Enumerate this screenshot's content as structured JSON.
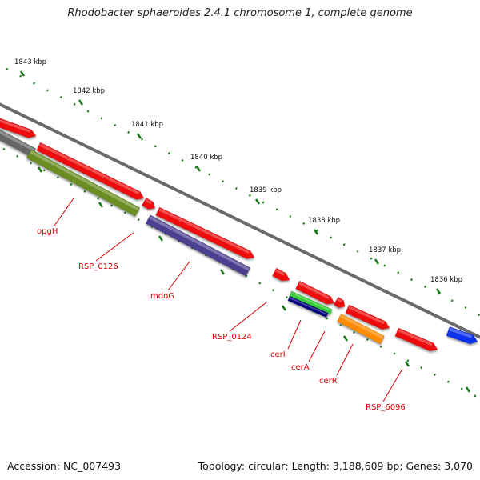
{
  "title": "Rhodobacter sphaeroides 2.4.1 chromosome 1, complete genome",
  "accession": "Accession: NC_007493",
  "summary": "Topology: circular; Length: 3,188,609 bp; Genes: 3,070",
  "ticks": [
    {
      "label": "1843 kbp",
      "kbp": 1843
    },
    {
      "label": "1842 kbp",
      "kbp": 1842
    },
    {
      "label": "1841 kbp",
      "kbp": 1841
    },
    {
      "label": "1840 kbp",
      "kbp": 1840
    },
    {
      "label": "1839 kbp",
      "kbp": 1839
    },
    {
      "label": "1838 kbp",
      "kbp": 1838
    },
    {
      "label": "1837 kbp",
      "kbp": 1837
    },
    {
      "label": "1836 kbp",
      "kbp": 1836
    }
  ],
  "features": [
    {
      "name": "",
      "kind": "gene",
      "strand": "plus",
      "color": "#ee1111"
    },
    {
      "name": "",
      "kind": "gene",
      "strand": "plus",
      "color": "#ee1111"
    },
    {
      "name": "",
      "kind": "gene",
      "strand": "plus",
      "color": "#ee1111"
    },
    {
      "name": "",
      "kind": "gene",
      "strand": "plus",
      "color": "#ee1111"
    },
    {
      "name": "",
      "kind": "gene",
      "strand": "plus",
      "color": "#ee1111"
    },
    {
      "name": "",
      "kind": "gene",
      "strand": "plus",
      "color": "#ee1111"
    },
    {
      "name": "",
      "kind": "gene",
      "strand": "plus",
      "color": "#ee1111"
    },
    {
      "name": "",
      "kind": "gene",
      "strand": "plus",
      "color": "#ee1111"
    },
    {
      "name": "",
      "kind": "gene",
      "strand": "plus",
      "color": "#ee1111"
    },
    {
      "name": "",
      "kind": "gene",
      "strand": "plus",
      "color": "#1133ee"
    },
    {
      "name": "",
      "kind": "region",
      "strand": "minus",
      "color": "#666666"
    },
    {
      "name": "opgH",
      "kind": "gene",
      "strand": "minus",
      "color": "#6b8e23"
    },
    {
      "name": "mdoG",
      "kind": "gene",
      "strand": "minus",
      "color": "#4b3f8f"
    },
    {
      "name": "cerI",
      "kind": "gene",
      "strand": "minus",
      "color": "#33cc33"
    },
    {
      "name": "cerA",
      "kind": "gene",
      "strand": "minus",
      "color": "#000080"
    },
    {
      "name": "cerR",
      "kind": "gene",
      "strand": "minus",
      "color": "#ff8c00"
    },
    {
      "name": "RSP_0126",
      "kind": "label",
      "strand": "minus",
      "color": "#cc0000"
    },
    {
      "name": "RSP_0124",
      "kind": "label",
      "strand": "minus",
      "color": "#cc0000"
    },
    {
      "name": "RSP_6096",
      "kind": "label",
      "strand": "minus",
      "color": "#cc0000"
    }
  ]
}
